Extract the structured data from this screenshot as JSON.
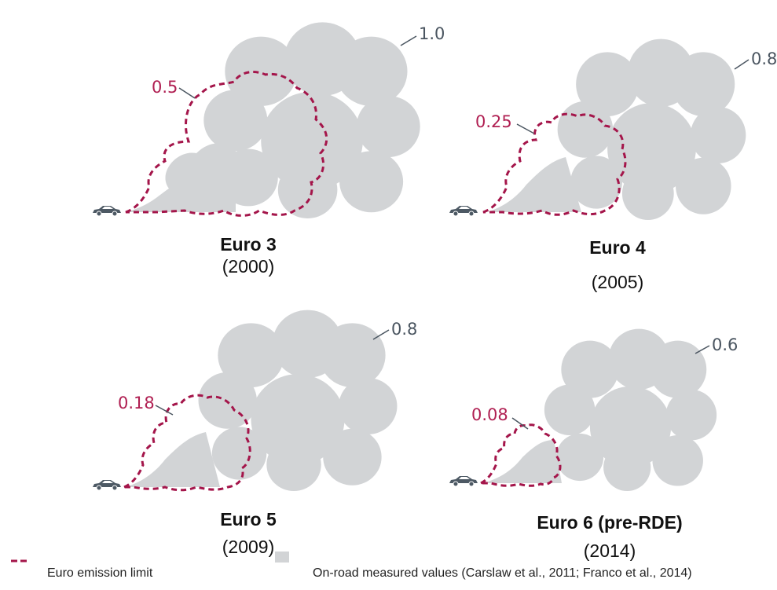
{
  "panels": [
    {
      "standard": "Euro 3",
      "year": "(2000)",
      "measured": 1.0,
      "limit": 0.5,
      "measured_label": "1.0",
      "limit_label": "0.5"
    },
    {
      "standard": "Euro 4",
      "year": "(2005)",
      "measured": 0.8,
      "limit": 0.25,
      "measured_label": "0.8",
      "limit_label": "0.25"
    },
    {
      "standard": "Euro 5",
      "year": "(2009)",
      "measured": 0.8,
      "limit": 0.18,
      "measured_label": "0.8",
      "limit_label": "0.18"
    },
    {
      "standard": "Euro 6 (pre-RDE)",
      "year": "(2014)",
      "measured": 0.6,
      "limit": 0.08,
      "measured_label": "0.6",
      "limit_label": "0.08"
    }
  ],
  "legend": {
    "limit_label": "Euro emission limit",
    "measured_label": "On-road measured values (Carslaw et al., 2011; Franco et al., 2014)"
  },
  "colors": {
    "measured_cloud": "#d2d4d6",
    "limit_outline": "#a4154a",
    "limit_text": "#b01f52",
    "measured_text": "#4a5560",
    "car": "#4d5964"
  },
  "icons": [
    "car-icon"
  ]
}
